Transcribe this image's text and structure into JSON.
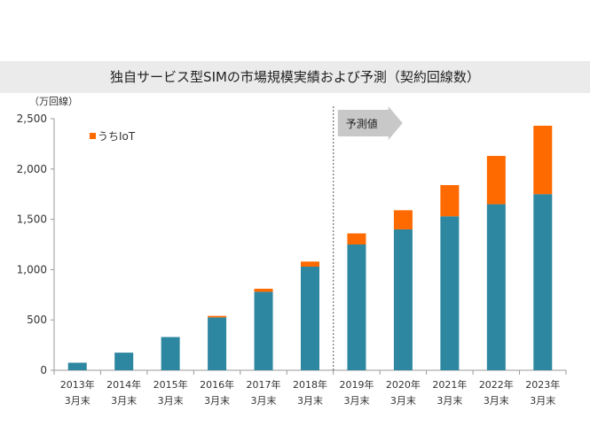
{
  "title": "独自サービス型SIMの市場規模実績および予測（契約回線数）",
  "chart_data": {
    "type": "bar",
    "stacked": true,
    "title": "独自サービス型SIMの市場規模実績および予測（契約回線数）",
    "unit_label": "（万回線）",
    "categories": [
      [
        "2013年",
        "3月末"
      ],
      [
        "2014年",
        "3月末"
      ],
      [
        "2015年",
        "3月末"
      ],
      [
        "2016年",
        "3月末"
      ],
      [
        "2017年",
        "3月末"
      ],
      [
        "2018年",
        "3月末"
      ],
      [
        "2019年",
        "3月末"
      ],
      [
        "2020年",
        "3月末"
      ],
      [
        "2021年",
        "3月末"
      ],
      [
        "2022年",
        "3月末"
      ],
      [
        "2023年",
        "3月末"
      ]
    ],
    "series": [
      {
        "color": "#2e87a0",
        "values": [
          75,
          175,
          330,
          525,
          780,
          1030,
          1250,
          1400,
          1530,
          1650,
          1750
        ]
      },
      {
        "name": "うちIoT",
        "color": "#ff6a00",
        "values": [
          0,
          0,
          0,
          15,
          30,
          50,
          110,
          190,
          310,
          480,
          680
        ]
      }
    ],
    "ylim": [
      0,
      2500
    ],
    "yticks": [
      "0",
      "500",
      "1,000",
      "1,500",
      "2,000",
      "2,500"
    ],
    "grid": false,
    "legend_position": "top-left",
    "forecast_label": "予測値",
    "forecast_start_index": 6
  }
}
